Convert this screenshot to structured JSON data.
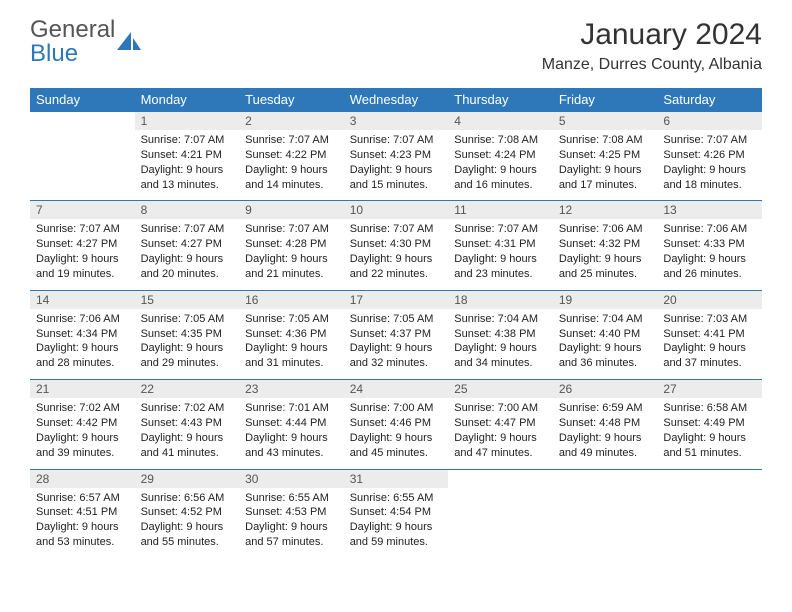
{
  "logo": {
    "general": "General",
    "blue": "Blue"
  },
  "title": "January 2024",
  "location": "Manze, Durres County, Albania",
  "colors": {
    "headerBg": "#2e77b8",
    "headerText": "#ffffff",
    "dayBg": "#ececec",
    "accentLine": "#2e77b8"
  },
  "daysOfWeek": [
    "Sunday",
    "Monday",
    "Tuesday",
    "Wednesday",
    "Thursday",
    "Friday",
    "Saturday"
  ],
  "weeks": [
    [
      {
        "empty": true
      },
      {
        "num": "1",
        "sunrise": "Sunrise: 7:07 AM",
        "sunset": "Sunset: 4:21 PM",
        "dl1": "Daylight: 9 hours",
        "dl2": "and 13 minutes."
      },
      {
        "num": "2",
        "sunrise": "Sunrise: 7:07 AM",
        "sunset": "Sunset: 4:22 PM",
        "dl1": "Daylight: 9 hours",
        "dl2": "and 14 minutes."
      },
      {
        "num": "3",
        "sunrise": "Sunrise: 7:07 AM",
        "sunset": "Sunset: 4:23 PM",
        "dl1": "Daylight: 9 hours",
        "dl2": "and 15 minutes."
      },
      {
        "num": "4",
        "sunrise": "Sunrise: 7:08 AM",
        "sunset": "Sunset: 4:24 PM",
        "dl1": "Daylight: 9 hours",
        "dl2": "and 16 minutes."
      },
      {
        "num": "5",
        "sunrise": "Sunrise: 7:08 AM",
        "sunset": "Sunset: 4:25 PM",
        "dl1": "Daylight: 9 hours",
        "dl2": "and 17 minutes."
      },
      {
        "num": "6",
        "sunrise": "Sunrise: 7:07 AM",
        "sunset": "Sunset: 4:26 PM",
        "dl1": "Daylight: 9 hours",
        "dl2": "and 18 minutes."
      }
    ],
    [
      {
        "num": "7",
        "sunrise": "Sunrise: 7:07 AM",
        "sunset": "Sunset: 4:27 PM",
        "dl1": "Daylight: 9 hours",
        "dl2": "and 19 minutes."
      },
      {
        "num": "8",
        "sunrise": "Sunrise: 7:07 AM",
        "sunset": "Sunset: 4:27 PM",
        "dl1": "Daylight: 9 hours",
        "dl2": "and 20 minutes."
      },
      {
        "num": "9",
        "sunrise": "Sunrise: 7:07 AM",
        "sunset": "Sunset: 4:28 PM",
        "dl1": "Daylight: 9 hours",
        "dl2": "and 21 minutes."
      },
      {
        "num": "10",
        "sunrise": "Sunrise: 7:07 AM",
        "sunset": "Sunset: 4:30 PM",
        "dl1": "Daylight: 9 hours",
        "dl2": "and 22 minutes."
      },
      {
        "num": "11",
        "sunrise": "Sunrise: 7:07 AM",
        "sunset": "Sunset: 4:31 PM",
        "dl1": "Daylight: 9 hours",
        "dl2": "and 23 minutes."
      },
      {
        "num": "12",
        "sunrise": "Sunrise: 7:06 AM",
        "sunset": "Sunset: 4:32 PM",
        "dl1": "Daylight: 9 hours",
        "dl2": "and 25 minutes."
      },
      {
        "num": "13",
        "sunrise": "Sunrise: 7:06 AM",
        "sunset": "Sunset: 4:33 PM",
        "dl1": "Daylight: 9 hours",
        "dl2": "and 26 minutes."
      }
    ],
    [
      {
        "num": "14",
        "sunrise": "Sunrise: 7:06 AM",
        "sunset": "Sunset: 4:34 PM",
        "dl1": "Daylight: 9 hours",
        "dl2": "and 28 minutes."
      },
      {
        "num": "15",
        "sunrise": "Sunrise: 7:05 AM",
        "sunset": "Sunset: 4:35 PM",
        "dl1": "Daylight: 9 hours",
        "dl2": "and 29 minutes."
      },
      {
        "num": "16",
        "sunrise": "Sunrise: 7:05 AM",
        "sunset": "Sunset: 4:36 PM",
        "dl1": "Daylight: 9 hours",
        "dl2": "and 31 minutes."
      },
      {
        "num": "17",
        "sunrise": "Sunrise: 7:05 AM",
        "sunset": "Sunset: 4:37 PM",
        "dl1": "Daylight: 9 hours",
        "dl2": "and 32 minutes."
      },
      {
        "num": "18",
        "sunrise": "Sunrise: 7:04 AM",
        "sunset": "Sunset: 4:38 PM",
        "dl1": "Daylight: 9 hours",
        "dl2": "and 34 minutes."
      },
      {
        "num": "19",
        "sunrise": "Sunrise: 7:04 AM",
        "sunset": "Sunset: 4:40 PM",
        "dl1": "Daylight: 9 hours",
        "dl2": "and 36 minutes."
      },
      {
        "num": "20",
        "sunrise": "Sunrise: 7:03 AM",
        "sunset": "Sunset: 4:41 PM",
        "dl1": "Daylight: 9 hours",
        "dl2": "and 37 minutes."
      }
    ],
    [
      {
        "num": "21",
        "sunrise": "Sunrise: 7:02 AM",
        "sunset": "Sunset: 4:42 PM",
        "dl1": "Daylight: 9 hours",
        "dl2": "and 39 minutes."
      },
      {
        "num": "22",
        "sunrise": "Sunrise: 7:02 AM",
        "sunset": "Sunset: 4:43 PM",
        "dl1": "Daylight: 9 hours",
        "dl2": "and 41 minutes."
      },
      {
        "num": "23",
        "sunrise": "Sunrise: 7:01 AM",
        "sunset": "Sunset: 4:44 PM",
        "dl1": "Daylight: 9 hours",
        "dl2": "and 43 minutes."
      },
      {
        "num": "24",
        "sunrise": "Sunrise: 7:00 AM",
        "sunset": "Sunset: 4:46 PM",
        "dl1": "Daylight: 9 hours",
        "dl2": "and 45 minutes."
      },
      {
        "num": "25",
        "sunrise": "Sunrise: 7:00 AM",
        "sunset": "Sunset: 4:47 PM",
        "dl1": "Daylight: 9 hours",
        "dl2": "and 47 minutes."
      },
      {
        "num": "26",
        "sunrise": "Sunrise: 6:59 AM",
        "sunset": "Sunset: 4:48 PM",
        "dl1": "Daylight: 9 hours",
        "dl2": "and 49 minutes."
      },
      {
        "num": "27",
        "sunrise": "Sunrise: 6:58 AM",
        "sunset": "Sunset: 4:49 PM",
        "dl1": "Daylight: 9 hours",
        "dl2": "and 51 minutes."
      }
    ],
    [
      {
        "num": "28",
        "sunrise": "Sunrise: 6:57 AM",
        "sunset": "Sunset: 4:51 PM",
        "dl1": "Daylight: 9 hours",
        "dl2": "and 53 minutes."
      },
      {
        "num": "29",
        "sunrise": "Sunrise: 6:56 AM",
        "sunset": "Sunset: 4:52 PM",
        "dl1": "Daylight: 9 hours",
        "dl2": "and 55 minutes."
      },
      {
        "num": "30",
        "sunrise": "Sunrise: 6:55 AM",
        "sunset": "Sunset: 4:53 PM",
        "dl1": "Daylight: 9 hours",
        "dl2": "and 57 minutes."
      },
      {
        "num": "31",
        "sunrise": "Sunrise: 6:55 AM",
        "sunset": "Sunset: 4:54 PM",
        "dl1": "Daylight: 9 hours",
        "dl2": "and 59 minutes."
      },
      {
        "empty": true
      },
      {
        "empty": true
      },
      {
        "empty": true
      }
    ]
  ]
}
